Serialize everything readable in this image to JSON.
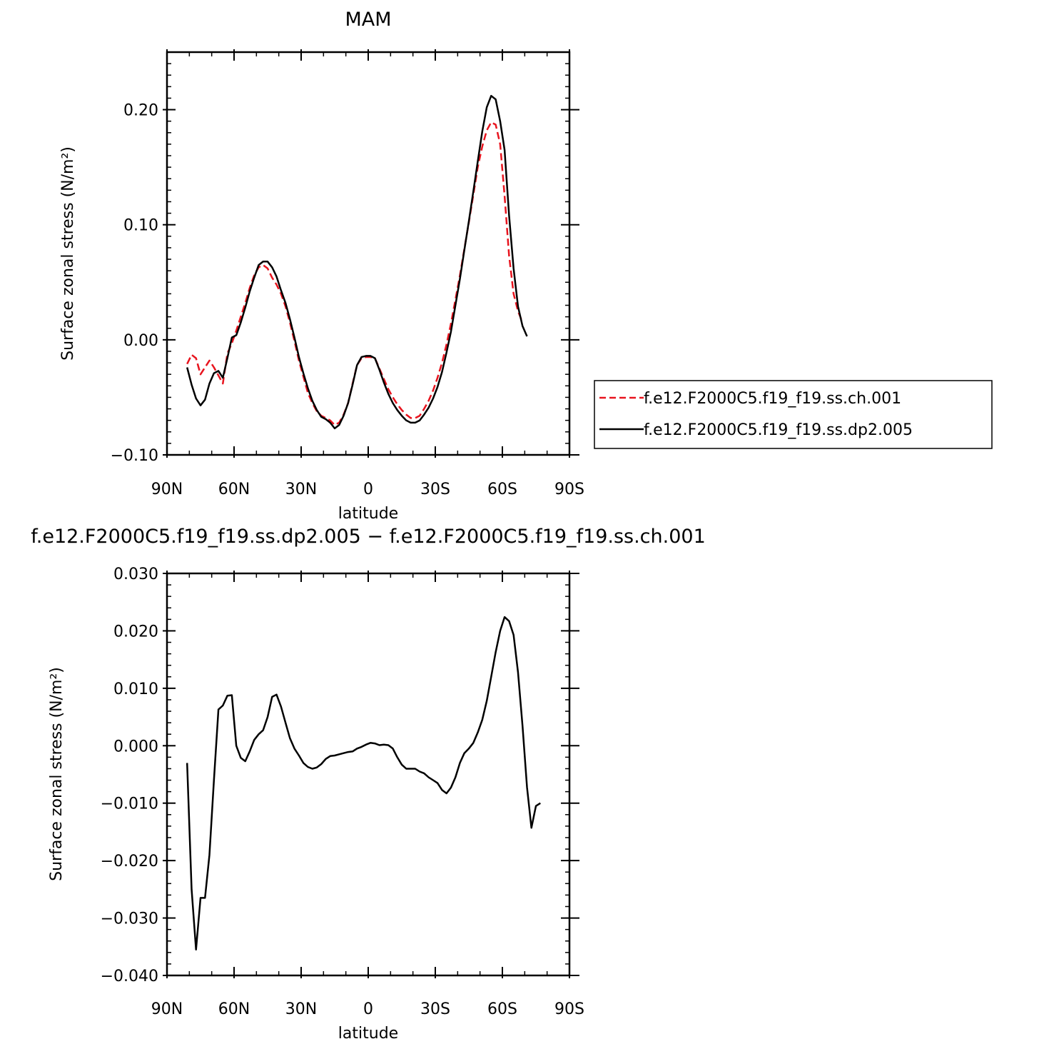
{
  "chart_data": [
    {
      "type": "line",
      "title": "MAM",
      "xlabel": "latitude",
      "ylabel": "Surface zonal stress (N/m²)",
      "xlim": [
        -90,
        90
      ],
      "ylim": [
        -0.1,
        0.25
      ],
      "x_ticks": [
        {
          "value": -90,
          "label": "90N"
        },
        {
          "value": -60,
          "label": "60N"
        },
        {
          "value": -30,
          "label": "30N"
        },
        {
          "value": 0,
          "label": "0"
        },
        {
          "value": 30,
          "label": "30S"
        },
        {
          "value": 60,
          "label": "60S"
        },
        {
          "value": 90,
          "label": "90S"
        }
      ],
      "y_ticks": [
        {
          "value": -0.1,
          "label": "−0.10"
        },
        {
          "value": 0.0,
          "label": "0.00"
        },
        {
          "value": 0.1,
          "label": "0.10"
        },
        {
          "value": 0.2,
          "label": "0.20"
        }
      ],
      "legend": "right",
      "series": [
        {
          "name": "f.e12.F2000C5.f19_f19.ss.ch.001",
          "color": "#e8141e",
          "dash": "dashed",
          "points": [
            [
              -81,
              -0.021
            ],
            [
              -79,
              -0.013
            ],
            [
              -77,
              -0.016
            ],
            [
              -75,
              -0.03
            ],
            [
              -73,
              -0.024
            ],
            [
              -71,
              -0.018
            ],
            [
              -69,
              -0.024
            ],
            [
              -67,
              -0.031
            ],
            [
              -65,
              -0.038
            ],
            [
              -63,
              -0.012
            ],
            [
              -61,
              -0.003
            ],
            [
              -59,
              0.008
            ],
            [
              -57,
              0.02
            ],
            [
              -55,
              0.032
            ],
            [
              -53,
              0.045
            ],
            [
              -51,
              0.056
            ],
            [
              -49,
              0.063
            ],
            [
              -47,
              0.065
            ],
            [
              -45,
              0.062
            ],
            [
              -43,
              0.054
            ],
            [
              -41,
              0.048
            ],
            [
              -39,
              0.04
            ],
            [
              -37,
              0.029
            ],
            [
              -35,
              0.015
            ],
            [
              -33,
              -0.001
            ],
            [
              -31,
              -0.018
            ],
            [
              -29,
              -0.032
            ],
            [
              -27,
              -0.046
            ],
            [
              -25,
              -0.055
            ],
            [
              -23,
              -0.062
            ],
            [
              -21,
              -0.066
            ],
            [
              -19,
              -0.068
            ],
            [
              -17,
              -0.07
            ],
            [
              -15,
              -0.074
            ],
            [
              -13,
              -0.072
            ],
            [
              -11,
              -0.065
            ],
            [
              -9,
              -0.055
            ],
            [
              -7,
              -0.038
            ],
            [
              -5,
              -0.022
            ],
            [
              -3,
              -0.016
            ],
            [
              -1,
              -0.015
            ],
            [
              1,
              -0.015
            ],
            [
              3,
              -0.016
            ],
            [
              5,
              -0.025
            ],
            [
              7,
              -0.034
            ],
            [
              9,
              -0.043
            ],
            [
              11,
              -0.05
            ],
            [
              13,
              -0.056
            ],
            [
              15,
              -0.061
            ],
            [
              17,
              -0.065
            ],
            [
              19,
              -0.068
            ],
            [
              21,
              -0.068
            ],
            [
              23,
              -0.066
            ],
            [
              25,
              -0.06
            ],
            [
              27,
              -0.053
            ],
            [
              29,
              -0.044
            ],
            [
              31,
              -0.033
            ],
            [
              33,
              -0.02
            ],
            [
              35,
              -0.004
            ],
            [
              37,
              0.014
            ],
            [
              39,
              0.035
            ],
            [
              41,
              0.056
            ],
            [
              43,
              0.079
            ],
            [
              45,
              0.102
            ],
            [
              47,
              0.126
            ],
            [
              49,
              0.15
            ],
            [
              51,
              0.168
            ],
            [
              53,
              0.182
            ],
            [
              55,
              0.189
            ],
            [
              57,
              0.187
            ],
            [
              59,
              0.17
            ],
            [
              61,
              0.125
            ],
            [
              63,
              0.073
            ],
            [
              65,
              0.04
            ],
            [
              67,
              0.025
            ],
            [
              69,
              0.015
            ]
          ]
        },
        {
          "name": "f.e12.F2000C5.f19_f19.ss.dp2.005",
          "color": "#000000",
          "dash": "solid",
          "points": [
            [
              -81,
              -0.024
            ],
            [
              -79,
              -0.039
            ],
            [
              -77,
              -0.051
            ],
            [
              -75,
              -0.057
            ],
            [
              -73,
              -0.052
            ],
            [
              -71,
              -0.038
            ],
            [
              -69,
              -0.029
            ],
            [
              -67,
              -0.027
            ],
            [
              -65,
              -0.033
            ],
            [
              -63,
              -0.016
            ],
            [
              -61,
              0.002
            ],
            [
              -59,
              0.004
            ],
            [
              -57,
              0.015
            ],
            [
              -55,
              0.028
            ],
            [
              -53,
              0.042
            ],
            [
              -51,
              0.054
            ],
            [
              -49,
              0.065
            ],
            [
              -47,
              0.068
            ],
            [
              -45,
              0.068
            ],
            [
              -43,
              0.063
            ],
            [
              -41,
              0.055
            ],
            [
              -39,
              0.043
            ],
            [
              -37,
              0.032
            ],
            [
              -35,
              0.018
            ],
            [
              -33,
              0.002
            ],
            [
              -31,
              -0.015
            ],
            [
              -29,
              -0.029
            ],
            [
              -27,
              -0.042
            ],
            [
              -25,
              -0.053
            ],
            [
              -23,
              -0.061
            ],
            [
              -21,
              -0.067
            ],
            [
              -19,
              -0.069
            ],
            [
              -17,
              -0.072
            ],
            [
              -15,
              -0.077
            ],
            [
              -13,
              -0.074
            ],
            [
              -11,
              -0.066
            ],
            [
              -9,
              -0.055
            ],
            [
              -7,
              -0.039
            ],
            [
              -5,
              -0.022
            ],
            [
              -3,
              -0.015
            ],
            [
              -1,
              -0.014
            ],
            [
              1,
              -0.014
            ],
            [
              3,
              -0.016
            ],
            [
              5,
              -0.026
            ],
            [
              7,
              -0.037
            ],
            [
              9,
              -0.047
            ],
            [
              11,
              -0.055
            ],
            [
              13,
              -0.061
            ],
            [
              15,
              -0.066
            ],
            [
              17,
              -0.07
            ],
            [
              19,
              -0.072
            ],
            [
              21,
              -0.072
            ],
            [
              23,
              -0.07
            ],
            [
              25,
              -0.065
            ],
            [
              27,
              -0.059
            ],
            [
              29,
              -0.051
            ],
            [
              31,
              -0.041
            ],
            [
              33,
              -0.028
            ],
            [
              35,
              -0.011
            ],
            [
              37,
              0.007
            ],
            [
              39,
              0.03
            ],
            [
              41,
              0.053
            ],
            [
              43,
              0.078
            ],
            [
              45,
              0.103
            ],
            [
              47,
              0.129
            ],
            [
              49,
              0.155
            ],
            [
              51,
              0.181
            ],
            [
              53,
              0.202
            ],
            [
              55,
              0.212
            ],
            [
              57,
              0.209
            ],
            [
              59,
              0.19
            ],
            [
              61,
              0.165
            ],
            [
              63,
              0.108
            ],
            [
              65,
              0.062
            ],
            [
              67,
              0.029
            ],
            [
              69,
              0.012
            ],
            [
              71,
              0.003
            ]
          ]
        }
      ]
    },
    {
      "type": "line",
      "title": "f.e12.F2000C5.f19_f19.ss.dp2.005 − f.e12.F2000C5.f19_f19.ss.ch.001",
      "xlabel": "latitude",
      "ylabel": "Surface zonal stress (N/m²)",
      "xlim": [
        -90,
        90
      ],
      "ylim": [
        -0.04,
        0.03
      ],
      "x_ticks": [
        {
          "value": -90,
          "label": "90N"
        },
        {
          "value": -60,
          "label": "60N"
        },
        {
          "value": -30,
          "label": "30N"
        },
        {
          "value": 0,
          "label": "0"
        },
        {
          "value": 30,
          "label": "30S"
        },
        {
          "value": 60,
          "label": "60S"
        },
        {
          "value": 90,
          "label": "90S"
        }
      ],
      "y_ticks": [
        {
          "value": -0.04,
          "label": "−0.040"
        },
        {
          "value": -0.03,
          "label": "−0.030"
        },
        {
          "value": -0.02,
          "label": "−0.020"
        },
        {
          "value": -0.01,
          "label": "−0.010"
        },
        {
          "value": 0.0,
          "label": "0.000"
        },
        {
          "value": 0.01,
          "label": "0.010"
        },
        {
          "value": 0.02,
          "label": "0.020"
        },
        {
          "value": 0.03,
          "label": "0.030"
        }
      ],
      "series": [
        {
          "color": "#000000",
          "dash": "solid",
          "points": [
            [
              -81,
              -0.003
            ],
            [
              -79,
              -0.025
            ],
            [
              -77,
              -0.0355
            ],
            [
              -75,
              -0.0265
            ],
            [
              -73,
              -0.0265
            ],
            [
              -71,
              -0.019
            ],
            [
              -69,
              -0.006
            ],
            [
              -67,
              0.0063
            ],
            [
              -65,
              0.007
            ],
            [
              -63,
              0.0087
            ],
            [
              -61,
              0.0088
            ],
            [
              -59,
              0.0
            ],
            [
              -57,
              -0.0021
            ],
            [
              -55,
              -0.0027
            ],
            [
              -53,
              -0.001
            ],
            [
              -51,
              0.001
            ],
            [
              -49,
              0.002
            ],
            [
              -47,
              0.0027
            ],
            [
              -45,
              0.005
            ],
            [
              -43,
              0.0085
            ],
            [
              -41,
              0.0089
            ],
            [
              -39,
              0.0068
            ],
            [
              -37,
              0.004
            ],
            [
              -35,
              0.0013
            ],
            [
              -33,
              -0.0005
            ],
            [
              -31,
              -0.0017
            ],
            [
              -29,
              -0.003
            ],
            [
              -27,
              -0.0037
            ],
            [
              -25,
              -0.004
            ],
            [
              -23,
              -0.0038
            ],
            [
              -21,
              -0.0032
            ],
            [
              -19,
              -0.0023
            ],
            [
              -17,
              -0.0018
            ],
            [
              -15,
              -0.0017
            ],
            [
              -13,
              -0.0015
            ],
            [
              -11,
              -0.0013
            ],
            [
              -9,
              -0.0011
            ],
            [
              -7,
              -0.001
            ],
            [
              -5,
              -0.0005
            ],
            [
              -3,
              -0.0002
            ],
            [
              -1,
              0.0002
            ],
            [
              1,
              0.0005
            ],
            [
              3,
              0.0004
            ],
            [
              5,
              0.0001
            ],
            [
              7,
              0.0002
            ],
            [
              9,
              0.0001
            ],
            [
              11,
              -0.0005
            ],
            [
              13,
              -0.002
            ],
            [
              15,
              -0.0033
            ],
            [
              17,
              -0.004
            ],
            [
              19,
              -0.004
            ],
            [
              21,
              -0.004
            ],
            [
              23,
              -0.0045
            ],
            [
              25,
              -0.0048
            ],
            [
              27,
              -0.0055
            ],
            [
              29,
              -0.006
            ],
            [
              31,
              -0.0065
            ],
            [
              33,
              -0.0077
            ],
            [
              35,
              -0.0083
            ],
            [
              37,
              -0.0073
            ],
            [
              39,
              -0.0055
            ],
            [
              41,
              -0.003
            ],
            [
              43,
              -0.0013
            ],
            [
              45,
              -0.0005
            ],
            [
              47,
              0.0005
            ],
            [
              49,
              0.0023
            ],
            [
              51,
              0.0045
            ],
            [
              53,
              0.0078
            ],
            [
              55,
              0.012
            ],
            [
              57,
              0.0163
            ],
            [
              59,
              0.02
            ],
            [
              61,
              0.0224
            ],
            [
              63,
              0.0217
            ],
            [
              65,
              0.0193
            ],
            [
              67,
              0.0128
            ],
            [
              69,
              0.0035
            ],
            [
              71,
              -0.0072
            ],
            [
              73,
              -0.0143
            ],
            [
              75,
              -0.0105
            ],
            [
              77,
              -0.01
            ]
          ]
        }
      ]
    }
  ]
}
